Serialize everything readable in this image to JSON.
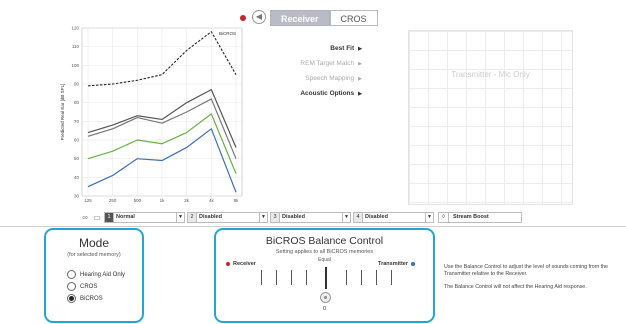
{
  "header": {
    "tabs": [
      {
        "label": "Receiver",
        "active": true
      },
      {
        "label": "CROS",
        "active": false
      }
    ]
  },
  "chart_data": {
    "type": "line",
    "title": "BiCROS",
    "ylabel": "Predicted Real Ear [dB SPL]",
    "x": [
      125,
      250,
      500,
      1000,
      2000,
      4000,
      8000
    ],
    "xticks": [
      "125",
      "250",
      "500",
      "1k",
      "2k",
      "4k",
      "8k"
    ],
    "yticks": [
      30,
      40,
      50,
      60,
      70,
      80,
      90,
      100,
      110,
      120
    ],
    "ylim": [
      30,
      120
    ],
    "series": [
      {
        "color": "#222222",
        "dashed": true,
        "values": [
          89,
          90,
          92,
          95,
          108,
          118,
          95
        ]
      },
      {
        "color": "#555555",
        "values": [
          64,
          68,
          73,
          71,
          80,
          87,
          56
        ]
      },
      {
        "color": "#777777",
        "values": [
          62,
          66,
          72,
          69,
          75,
          82,
          50
        ]
      },
      {
        "color": "#66b243",
        "values": [
          50,
          54,
          60,
          58,
          64,
          74,
          42
        ]
      },
      {
        "color": "#3d6fb6",
        "values": [
          35,
          41,
          50,
          49,
          56,
          66,
          32
        ]
      }
    ]
  },
  "menu": {
    "best_fit": "Best Fit",
    "rem_target": "REM Target Match",
    "speech": "Speech Mapping",
    "acoustic": "Acoustic Options"
  },
  "transmitter": {
    "label": "Transmitter - Mic Only"
  },
  "memories": [
    {
      "num": "1",
      "label": "Normal",
      "selected": true
    },
    {
      "num": "2",
      "label": "Disabled",
      "selected": false
    },
    {
      "num": "3",
      "label": "Disabled",
      "selected": false
    },
    {
      "num": "4",
      "label": "Disabled",
      "selected": false
    }
  ],
  "stream": {
    "label": "Stream Boost"
  },
  "mode_panel": {
    "title": "Mode",
    "subtitle": "(for selected memory)",
    "options": [
      {
        "label": "Hearing Aid Only",
        "selected": false
      },
      {
        "label": "CROS",
        "selected": false
      },
      {
        "label": "BiCROS",
        "selected": true
      }
    ]
  },
  "balance_panel": {
    "title": "BiCROS Balance Control",
    "subtitle": "Setting applies to all BiCROS memories",
    "left_label": "Receiver",
    "right_label": "Transmitter",
    "center_label": "Equal",
    "value": "0",
    "left_color": "#c0282d",
    "right_color": "#2a7ac0"
  },
  "info": {
    "line1": "Use the Balance Control to adjust the level of sounds coming from the Transmitter relative to the Receiver.",
    "line2": "The Balance Control will not affect the Hearing Aid response."
  }
}
